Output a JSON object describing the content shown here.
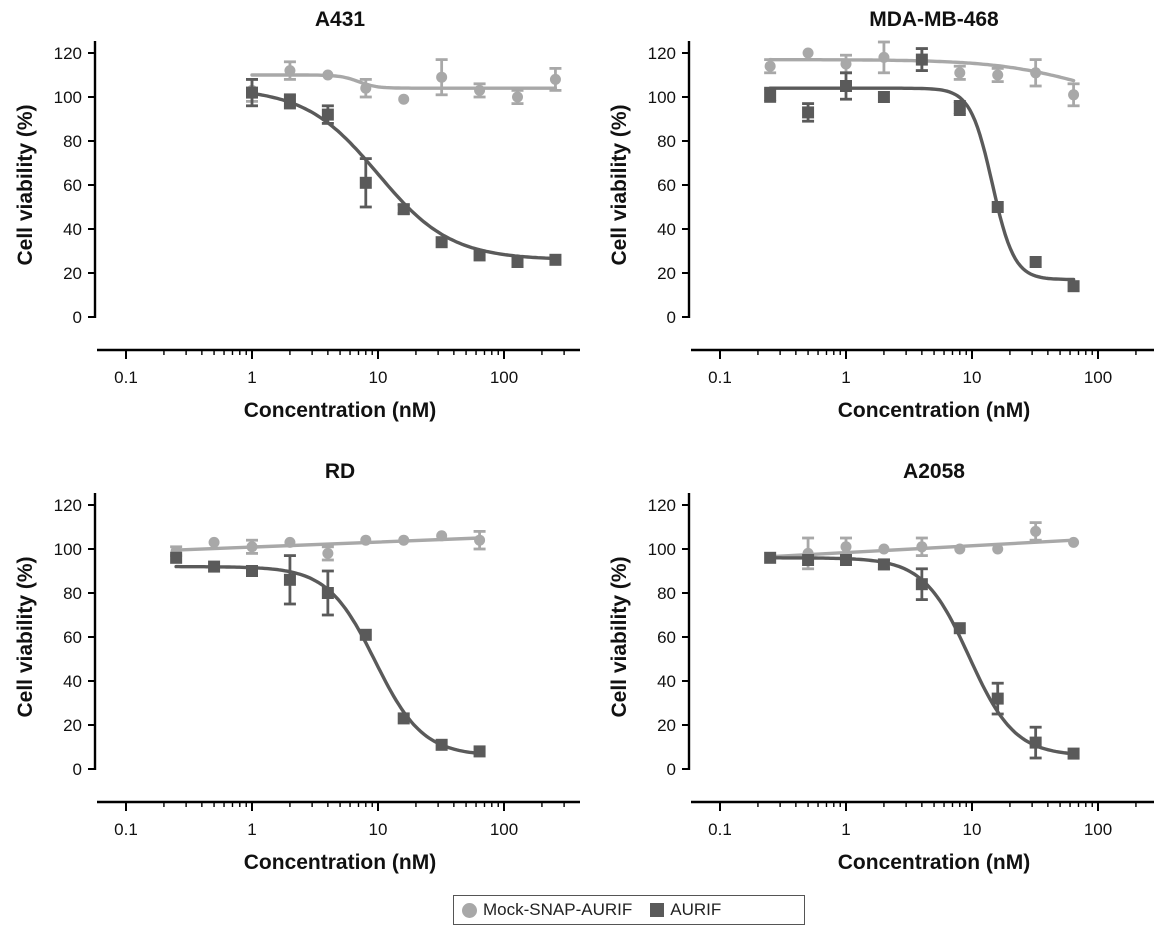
{
  "colors": {
    "mock": "#a8a8a8",
    "aurif": "#5a5a5a",
    "axis": "#000000"
  },
  "legend": {
    "items": [
      {
        "label": "Mock-SNAP-AURIF",
        "marker": "circle",
        "color": "#a8a8a8"
      },
      {
        "label": "AURIF",
        "marker": "square",
        "color": "#5a5a5a"
      }
    ]
  },
  "chart_data": [
    {
      "type": "scatter",
      "title": "A431",
      "xlabel": "Concentration (nM)",
      "ylabel": "Cell viability (%)",
      "xscale": "log",
      "xlim": [
        0.1,
        300
      ],
      "ylim": [
        0,
        130
      ],
      "xticks": [
        "0.1",
        "1",
        "10",
        "100"
      ],
      "yticks": [
        "0",
        "20",
        "40",
        "60",
        "80",
        "100",
        "120"
      ],
      "series": [
        {
          "name": "Mock-SNAP-AURIF",
          "marker": "circle",
          "x": [
            1,
            2,
            4,
            8,
            16,
            32,
            64,
            128,
            256
          ],
          "y": [
            103,
            112,
            110,
            104,
            99,
            109,
            103,
            100,
            108
          ],
          "err": [
            5,
            4,
            0,
            4,
            0,
            8,
            3,
            3,
            5
          ],
          "fit": {
            "bottom": 104,
            "top": 110,
            "ic50": 7,
            "hill": 6
          }
        },
        {
          "name": "AURIF",
          "marker": "square",
          "x": [
            1,
            2,
            4,
            8,
            16,
            32,
            64,
            128,
            256
          ],
          "y": [
            102,
            98,
            92,
            61,
            49,
            34,
            28,
            25,
            26
          ],
          "err": [
            6,
            3,
            4,
            11,
            2,
            0,
            0,
            0,
            0
          ],
          "fit": {
            "bottom": 26,
            "top": 104,
            "ic50": 10,
            "hill": 1.5
          }
        }
      ]
    },
    {
      "type": "scatter",
      "title": "MDA-MB-468",
      "xlabel": "Concentration (nM)",
      "ylabel": "Cell viability (%)",
      "xscale": "log",
      "xlim": [
        0.1,
        300
      ],
      "ylim": [
        0,
        130
      ],
      "xticks": [
        "0.1",
        "1",
        "10",
        "100"
      ],
      "yticks": [
        "0",
        "20",
        "40",
        "60",
        "80",
        "100",
        "120"
      ],
      "series": [
        {
          "name": "Mock-SNAP-AURIF",
          "marker": "circle",
          "x": [
            0.25,
            0.5,
            1,
            2,
            4,
            8,
            16,
            32,
            64
          ],
          "y": [
            114,
            120,
            115,
            118,
            117,
            111,
            110,
            111,
            101
          ],
          "err": [
            3,
            0,
            4,
            7,
            5,
            3,
            3,
            6,
            5
          ],
          "fit": {
            "bottom": 95,
            "top": 117,
            "ic50": 80,
            "hill": 1.2
          }
        },
        {
          "name": "AURIF",
          "marker": "square",
          "x": [
            0.25,
            0.5,
            1,
            2,
            4,
            8,
            16,
            32,
            64
          ],
          "y": [
            101,
            93,
            105,
            100,
            117,
            95,
            50,
            25,
            14
          ],
          "err": [
            3,
            4,
            6,
            0,
            5,
            3,
            0,
            0,
            0
          ],
          "fit": {
            "bottom": 17,
            "top": 104,
            "ic50": 14.5,
            "hill": 5
          }
        }
      ]
    },
    {
      "type": "scatter",
      "title": "RD",
      "xlabel": "Concentration (nM)",
      "ylabel": "Cell viability (%)",
      "xscale": "log",
      "xlim": [
        0.1,
        300
      ],
      "ylim": [
        0,
        130
      ],
      "xticks": [
        "0.1",
        "1",
        "10",
        "100"
      ],
      "yticks": [
        "0",
        "20",
        "40",
        "60",
        "80",
        "100",
        "120"
      ],
      "series": [
        {
          "name": "Mock-SNAP-AURIF",
          "marker": "circle",
          "x": [
            0.25,
            0.5,
            1,
            2,
            4,
            8,
            16,
            32,
            64
          ],
          "y": [
            99,
            103,
            101,
            103,
            98,
            104,
            104,
            106,
            104
          ],
          "err": [
            2,
            0,
            3,
            0,
            3,
            0,
            0,
            0,
            4
          ],
          "fit": {
            "line": [
              [
                0.25,
                99.5
              ],
              [
                64,
                105
              ]
            ]
          }
        },
        {
          "name": "AURIF",
          "marker": "square",
          "x": [
            0.25,
            0.5,
            1,
            2,
            4,
            8,
            16,
            32,
            64
          ],
          "y": [
            96,
            92,
            90,
            86,
            80,
            61,
            23,
            11,
            8
          ],
          "err": [
            0,
            0,
            0,
            11,
            10,
            0,
            0,
            0,
            0
          ],
          "fit": {
            "bottom": 6,
            "top": 92,
            "ic50": 9.5,
            "hill": 2.3
          }
        }
      ]
    },
    {
      "type": "scatter",
      "title": "A2058",
      "xlabel": "Concentration (nM)",
      "ylabel": "Cell viability (%)",
      "xscale": "log",
      "xlim": [
        0.1,
        300
      ],
      "ylim": [
        0,
        130
      ],
      "xticks": [
        "0.1",
        "1",
        "10",
        "100"
      ],
      "yticks": [
        "0",
        "20",
        "40",
        "60",
        "80",
        "100",
        "120"
      ],
      "series": [
        {
          "name": "Mock-SNAP-AURIF",
          "marker": "circle",
          "x": [
            0.25,
            0.5,
            1,
            2,
            4,
            8,
            16,
            32,
            64
          ],
          "y": [
            96,
            98,
            101,
            100,
            101,
            100,
            100,
            108,
            103
          ],
          "err": [
            0,
            7,
            4,
            0,
            4,
            0,
            0,
            4,
            0
          ],
          "fit": {
            "line": [
              [
                0.25,
                96.5
              ],
              [
                64,
                104
              ]
            ]
          }
        },
        {
          "name": "AURIF",
          "marker": "square",
          "x": [
            0.25,
            0.5,
            1,
            2,
            4,
            8,
            16,
            32,
            64
          ],
          "y": [
            96,
            95,
            95,
            93,
            84,
            64,
            32,
            12,
            7
          ],
          "err": [
            0,
            0,
            0,
            2,
            7,
            0,
            7,
            7,
            0
          ],
          "fit": {
            "bottom": 6,
            "top": 96,
            "ic50": 9.5,
            "hill": 2.4
          }
        }
      ]
    }
  ]
}
